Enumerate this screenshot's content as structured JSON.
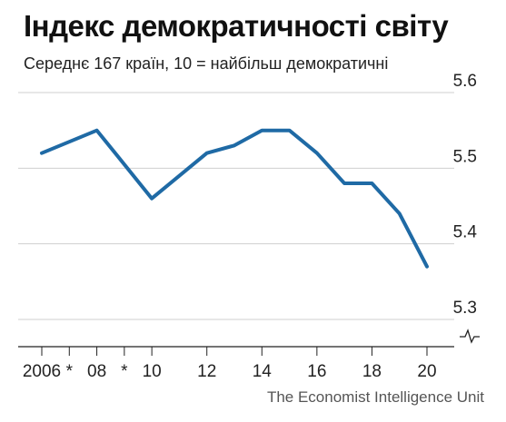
{
  "chart_data": {
    "type": "line",
    "title": "Індекс демократичності світу",
    "subtitle": "Середнє 167 країн, 10 = найбільш демократичні",
    "source": "The Economist Intelligence Unit",
    "x": [
      2006,
      2008,
      2010,
      2011,
      2012,
      2013,
      2014,
      2015,
      2016,
      2017,
      2018,
      2019,
      2020
    ],
    "series": [
      {
        "values": [
          5.52,
          5.55,
          5.46,
          5.49,
          5.52,
          5.53,
          5.55,
          5.55,
          5.52,
          5.48,
          5.48,
          5.44,
          5.37
        ]
      }
    ],
    "ylim": [
      5.3,
      5.6
    ],
    "yticks": [
      5.3,
      5.4,
      5.5,
      5.6
    ],
    "ytick_labels": [
      "5.3",
      "5.4",
      "5.5",
      "5.6"
    ],
    "xticks": [
      {
        "x": 2006,
        "label": "2006"
      },
      {
        "x": 2007,
        "label": "*"
      },
      {
        "x": 2008,
        "label": "08"
      },
      {
        "x": 2009,
        "label": "*"
      },
      {
        "x": 2010,
        "label": "10"
      },
      {
        "x": 2012,
        "label": "12"
      },
      {
        "x": 2014,
        "label": "14"
      },
      {
        "x": 2016,
        "label": "16"
      },
      {
        "x": 2018,
        "label": "18"
      },
      {
        "x": 2020,
        "label": "20"
      }
    ],
    "xlim": [
      2006,
      2020
    ],
    "axis_break": true,
    "grid": true,
    "line_color": "#1f6aa5",
    "grid_color": "#cfcfcf",
    "axis_color": "#222222"
  }
}
